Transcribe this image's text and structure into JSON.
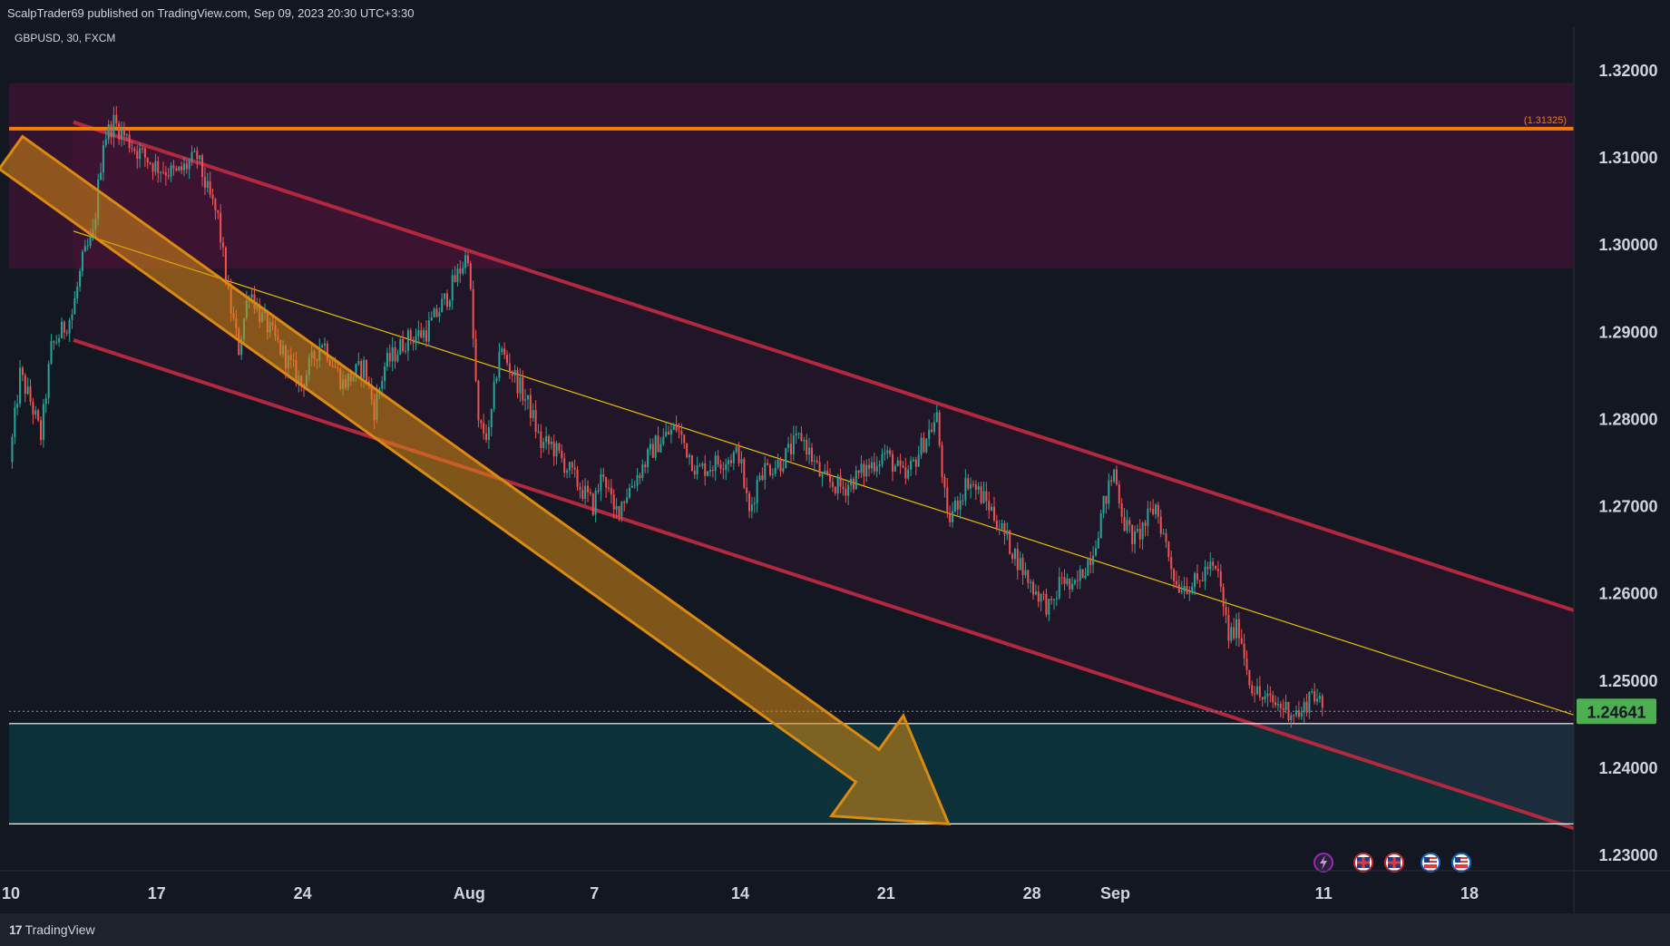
{
  "header": {
    "published": "ScalpTrader69 published on TradingView.com, Sep 09, 2023 20:30 UTC+3:30"
  },
  "footer": {
    "brand": "TradingView",
    "brand_icon": "tradingview-logo-icon"
  },
  "chart_data": {
    "type": "candlestick",
    "symbol_label": "GBPUSD, 30, FXCM",
    "symbol": "GBPUSD",
    "interval": "30",
    "source": "FXCM",
    "ylim": [
      1.2265,
      1.324
    ],
    "y_ticks": [
      "1.32000",
      "1.31000",
      "1.30000",
      "1.29000",
      "1.28000",
      "1.27000",
      "1.26000",
      "1.25000",
      "1.24000",
      "1.23000"
    ],
    "x_ticks": [
      {
        "label": "10",
        "date": "2023-07-10"
      },
      {
        "label": "17",
        "date": "2023-07-17"
      },
      {
        "label": "24",
        "date": "2023-07-24"
      },
      {
        "label": "Aug",
        "date": "2023-08-01"
      },
      {
        "label": "7",
        "date": "2023-08-07"
      },
      {
        "label": "14",
        "date": "2023-08-14"
      },
      {
        "label": "21",
        "date": "2023-08-21"
      },
      {
        "label": "28",
        "date": "2023-08-28"
      },
      {
        "label": "Sep",
        "date": "2023-09-01"
      },
      {
        "label": "11",
        "date": "2023-09-11"
      },
      {
        "label": "18",
        "date": "2023-09-18"
      }
    ],
    "xlim": [
      "2023-07-10",
      "2023-09-23"
    ],
    "last_price": "1.24641",
    "last_price_value": 1.24641,
    "price_path": [
      [
        "2023-07-10",
        1.275
      ],
      [
        "2023-07-10",
        1.285
      ],
      [
        "2023-07-11",
        1.282
      ],
      [
        "2023-07-11",
        1.278
      ],
      [
        "2023-07-12",
        1.288
      ],
      [
        "2023-07-13",
        1.292
      ],
      [
        "2023-07-13",
        1.298
      ],
      [
        "2023-07-14",
        1.301
      ],
      [
        "2023-07-14",
        1.312
      ],
      [
        "2023-07-15",
        1.314
      ],
      [
        "2023-07-16",
        1.311
      ],
      [
        "2023-07-17",
        1.309
      ],
      [
        "2023-07-18",
        1.308
      ],
      [
        "2023-07-19",
        1.31
      ],
      [
        "2023-07-19",
        1.306
      ],
      [
        "2023-07-20",
        1.303
      ],
      [
        "2023-07-20",
        1.294
      ],
      [
        "2023-07-21",
        1.288
      ],
      [
        "2023-07-21",
        1.295
      ],
      [
        "2023-07-22",
        1.292
      ],
      [
        "2023-07-24",
        1.284
      ],
      [
        "2023-07-25",
        1.289
      ],
      [
        "2023-07-26",
        1.284
      ],
      [
        "2023-07-27",
        1.286
      ],
      [
        "2023-07-27",
        1.281
      ],
      [
        "2023-07-28",
        1.286
      ],
      [
        "2023-07-29",
        1.289
      ],
      [
        "2023-07-30",
        1.29
      ],
      [
        "2023-07-31",
        1.294
      ],
      [
        "2023-08-01",
        1.299
      ],
      [
        "2023-08-01",
        1.279
      ],
      [
        "2023-08-02",
        1.278
      ],
      [
        "2023-08-02",
        1.288
      ],
      [
        "2023-08-03",
        1.286
      ],
      [
        "2023-08-04",
        1.281
      ],
      [
        "2023-08-04",
        1.277
      ],
      [
        "2023-08-05",
        1.277
      ],
      [
        "2023-08-07",
        1.27
      ],
      [
        "2023-08-07",
        1.274
      ],
      [
        "2023-08-08",
        1.269
      ],
      [
        "2023-08-09",
        1.273
      ],
      [
        "2023-08-10",
        1.277
      ],
      [
        "2023-08-11",
        1.279
      ],
      [
        "2023-08-12",
        1.274
      ],
      [
        "2023-08-14",
        1.276
      ],
      [
        "2023-08-14",
        1.269
      ],
      [
        "2023-08-15",
        1.274
      ],
      [
        "2023-08-16",
        1.275
      ],
      [
        "2023-08-17",
        1.278
      ],
      [
        "2023-08-18",
        1.273
      ],
      [
        "2023-08-19",
        1.272
      ],
      [
        "2023-08-21",
        1.276
      ],
      [
        "2023-08-22",
        1.273
      ],
      [
        "2023-08-23",
        1.278
      ],
      [
        "2023-08-23",
        1.28
      ],
      [
        "2023-08-24",
        1.268
      ],
      [
        "2023-08-25",
        1.273
      ],
      [
        "2023-08-26",
        1.27
      ],
      [
        "2023-08-28",
        1.261
      ],
      [
        "2023-08-29",
        1.258
      ],
      [
        "2023-08-29",
        1.262
      ],
      [
        "2023-08-30",
        1.26
      ],
      [
        "2023-08-31",
        1.265
      ],
      [
        "2023-08-31",
        1.27
      ],
      [
        "2023-09-01",
        1.274
      ],
      [
        "2023-09-01",
        1.268
      ],
      [
        "2023-09-02",
        1.266
      ],
      [
        "2023-09-03",
        1.27
      ],
      [
        "2023-09-04",
        1.261
      ],
      [
        "2023-09-05",
        1.261
      ],
      [
        "2023-09-05",
        1.263
      ],
      [
        "2023-09-06",
        1.262
      ],
      [
        "2023-09-06",
        1.255
      ],
      [
        "2023-09-07",
        1.256
      ],
      [
        "2023-09-07",
        1.25
      ],
      [
        "2023-09-08",
        1.248
      ],
      [
        "2023-09-09",
        1.247
      ],
      [
        "2023-09-10",
        1.246
      ],
      [
        "2023-09-10",
        1.249
      ],
      [
        "2023-09-11",
        1.2464
      ]
    ],
    "horizontal_levels": [
      {
        "price": 1.31325,
        "label": "(1.31325)",
        "color": "#f57c00"
      },
      {
        "price": 1.245,
        "color": "#ffffff"
      },
      {
        "price": 1.2335,
        "color": "#ffffff"
      }
    ],
    "zones": [
      {
        "from": 1.2972,
        "to": 1.3185,
        "color": "#880e4f"
      },
      {
        "from": 1.2335,
        "to": 1.245,
        "color": "#006064"
      }
    ],
    "channel": {
      "color": "#b2283f",
      "upper": [
        [
          "2023-07-13",
          1.314
        ],
        [
          "2023-09-23",
          1.258
        ]
      ],
      "lower": [
        [
          "2023-07-13",
          1.289
        ],
        [
          "2023-09-23",
          1.233
        ]
      ],
      "mid": [
        [
          "2023-07-13",
          1.3015
        ],
        [
          "2023-09-23",
          1.246
        ]
      ],
      "mid_color": "#e6c200"
    },
    "arrow": {
      "color": "#d98a12",
      "from": [
        "2023-07-10",
        1.3105
      ],
      "to": [
        "2023-08-24",
        1.2335
      ]
    },
    "event_icons": [
      "lightning-icon",
      "uk-flag-icon",
      "uk-flag-icon",
      "us-flag-icon",
      "us-flag-icon"
    ],
    "colors": {
      "background": "#131722",
      "up": "#26a69a",
      "down": "#ef5350",
      "last_price_bg": "#4caf50"
    }
  }
}
